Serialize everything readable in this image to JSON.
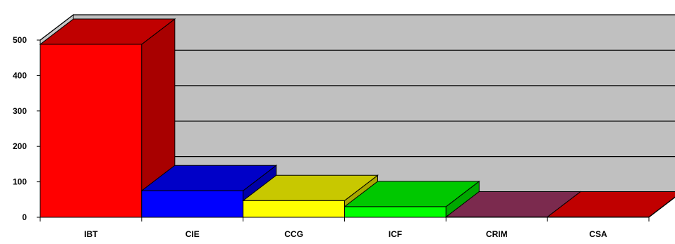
{
  "chart_data": {
    "type": "bar",
    "style": "3d",
    "title": "",
    "xlabel": "",
    "ylabel": "",
    "categories": [
      "IBT",
      "CIE",
      "CCG",
      "ICF",
      "CRIM",
      "CSA"
    ],
    "values": [
      488,
      75,
      47,
      30,
      1,
      1
    ],
    "ylim": [
      0,
      500
    ],
    "yticks": [
      0,
      100,
      200,
      300,
      400,
      500
    ],
    "grid": true,
    "legend": "none",
    "colors": {
      "bars_front": [
        "#ff0000",
        "#0000ff",
        "#ffff00",
        "#00ff00",
        "#7b2a4e",
        "#c00000"
      ],
      "bars_side": [
        "#a80000",
        "#0000a8",
        "#a8a800",
        "#00a800",
        "#5e1f3b",
        "#900000"
      ],
      "bars_top": [
        "#c00000",
        "#0000c8",
        "#c8c800",
        "#00c800",
        "#7b2a4e",
        "#c00000"
      ],
      "wall": "#c0c0c0",
      "floor": "#a0a0a0"
    }
  }
}
